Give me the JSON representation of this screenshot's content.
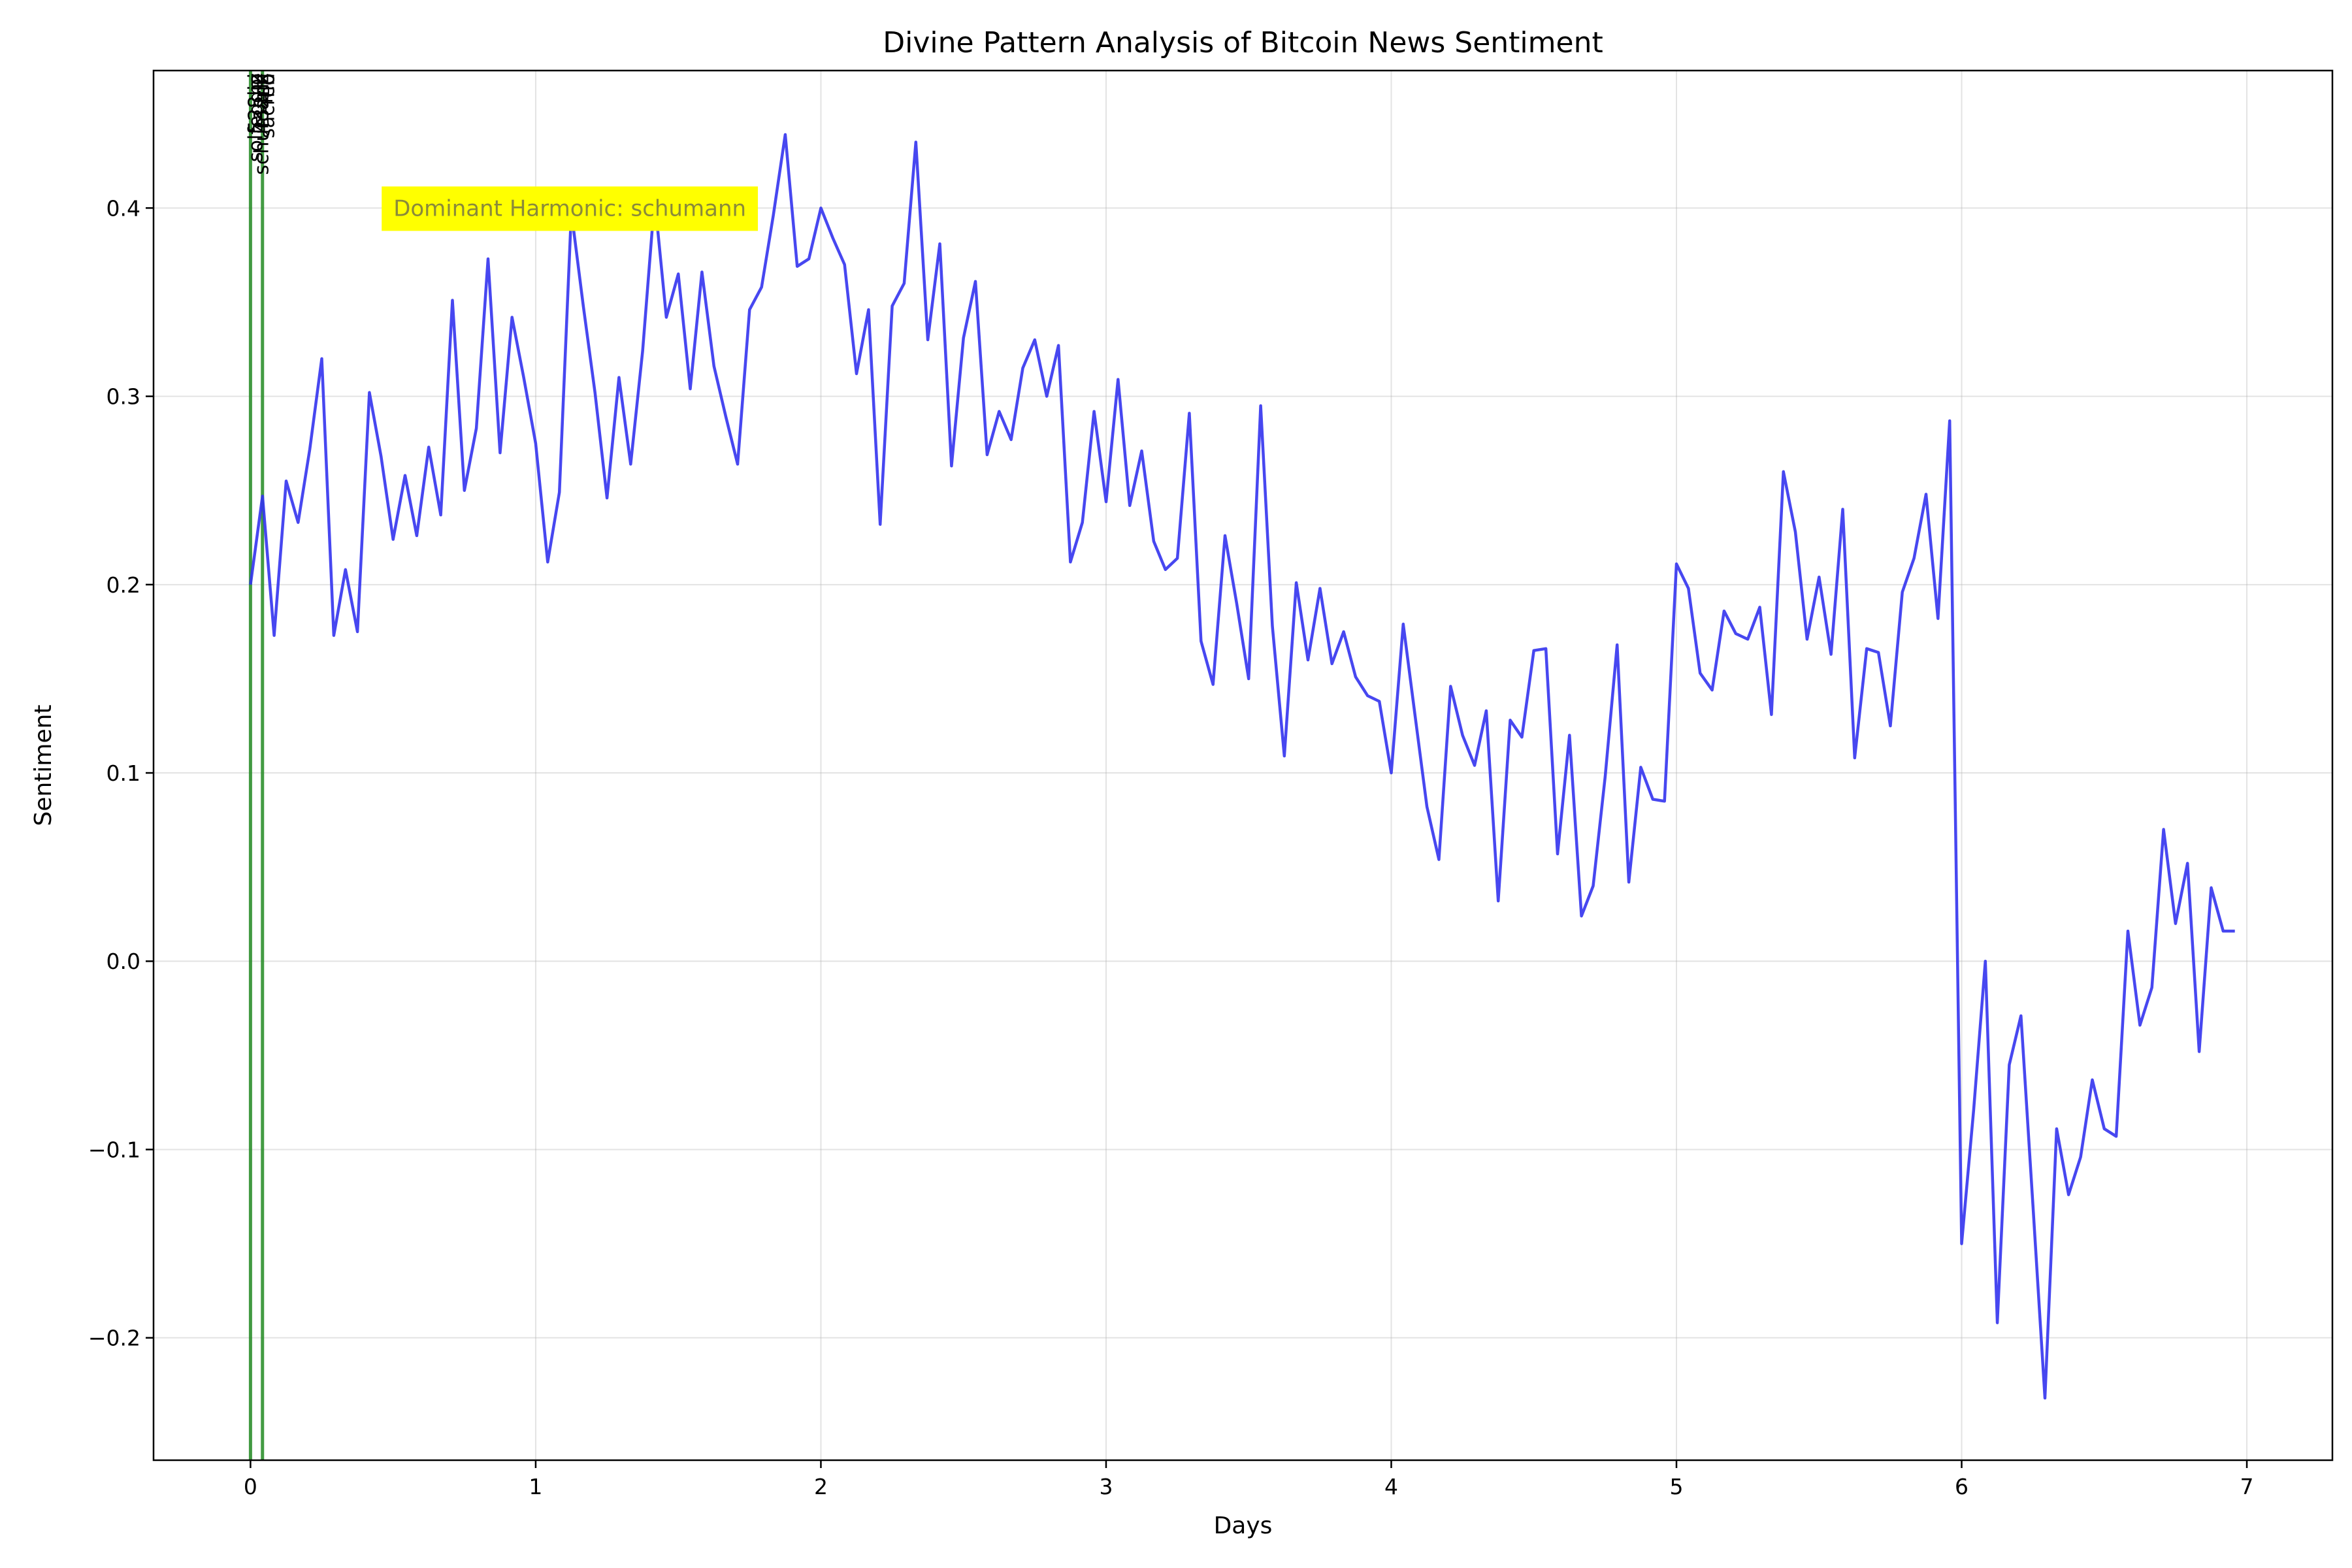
{
  "chart_data": {
    "type": "line",
    "title": "Divine Pattern Analysis of Bitcoin News Sentiment",
    "xlabel": "Days",
    "ylabel": "Sentiment",
    "xlim": [
      -0.34,
      7.3
    ],
    "ylim": [
      -0.265,
      0.473
    ],
    "grid": true,
    "x_ticks": [
      0,
      1,
      2,
      3,
      4,
      5,
      6,
      7
    ],
    "x_tick_labels": [
      "0",
      "1",
      "2",
      "3",
      "4",
      "5",
      "6",
      "7"
    ],
    "y_ticks": [
      -0.2,
      -0.1,
      0.0,
      0.1,
      0.2,
      0.3,
      0.4
    ],
    "y_tick_labels": [
      "−0.2",
      "−0.1",
      "0.0",
      "0.1",
      "0.2",
      "0.3",
      "0.4"
    ],
    "line_color": "#3333ee",
    "vline_color": "#228b22",
    "annotation_bg": "#ffff00",
    "vlines": [
      {
        "x": 0.0,
        "label": "solfeggio"
      },
      {
        "x": 0.042,
        "label": "schumann"
      }
    ],
    "vline_label_text": "solfeggio schumann sacred pi phi fib 528hz 432hz",
    "annotation": "Dominant Harmonic: schumann",
    "annotation_pos": [
      0.46,
      0.4
    ],
    "series": [
      {
        "x": [
          0.0,
          0.042,
          0.083,
          0.125,
          0.167,
          0.208,
          0.25,
          0.292,
          0.333,
          0.375,
          0.417,
          0.458,
          0.5,
          0.542,
          0.583,
          0.625,
          0.667,
          0.708,
          0.75,
          0.792,
          0.833,
          0.875,
          0.917,
          0.958,
          1.0,
          1.042,
          1.083,
          1.125,
          1.167,
          1.208,
          1.25,
          1.292,
          1.333,
          1.375,
          1.417,
          1.458,
          1.5,
          1.542,
          1.583,
          1.625,
          1.667,
          1.708,
          1.75,
          1.792,
          1.833,
          1.875,
          1.917,
          1.958,
          2.0,
          2.042,
          2.083,
          2.125,
          2.167,
          2.208,
          2.25,
          2.292,
          2.333,
          2.375,
          2.417,
          2.458,
          2.5,
          2.542,
          2.583,
          2.625,
          2.667,
          2.708,
          2.75,
          2.792,
          2.833,
          2.875,
          2.917,
          2.958,
          3.0,
          3.042,
          3.083,
          3.125,
          3.167,
          3.208,
          3.25,
          3.292,
          3.333,
          3.375,
          3.417,
          3.458,
          3.5,
          3.542,
          3.583,
          3.625,
          3.667,
          3.708,
          3.75,
          3.792,
          3.833,
          3.875,
          3.917,
          3.958,
          4.0,
          4.042,
          4.083,
          4.125,
          4.167,
          4.208,
          4.25,
          4.292,
          4.333,
          4.375,
          4.417,
          4.458,
          4.5,
          4.542,
          4.583,
          4.625,
          4.667,
          4.708,
          4.75,
          4.792,
          4.833,
          4.875,
          4.917,
          4.958,
          5.0,
          5.042,
          5.083,
          5.125,
          5.167,
          5.208,
          5.25,
          5.292,
          5.333,
          5.375,
          5.417,
          5.458,
          5.5,
          5.542,
          5.583,
          5.625,
          5.667,
          5.708,
          5.75,
          5.792,
          5.833,
          5.875,
          5.917,
          5.958,
          6.0,
          6.042,
          6.083,
          6.125,
          6.167,
          6.208,
          6.25,
          6.292,
          6.333,
          6.375,
          6.417,
          6.458,
          6.5,
          6.542,
          6.583,
          6.625,
          6.667,
          6.708,
          6.75,
          6.792,
          6.833,
          6.875,
          6.917,
          6.958
        ],
        "values": [
          0.2,
          0.247,
          0.173,
          0.255,
          0.233,
          0.272,
          0.32,
          0.173,
          0.208,
          0.175,
          0.302,
          0.268,
          0.224,
          0.258,
          0.226,
          0.273,
          0.237,
          0.351,
          0.25,
          0.283,
          0.373,
          0.27,
          0.342,
          0.31,
          0.275,
          0.212,
          0.249,
          0.398,
          0.348,
          0.302,
          0.246,
          0.31,
          0.264,
          0.324,
          0.405,
          0.342,
          0.365,
          0.304,
          0.366,
          0.316,
          0.289,
          0.264,
          0.346,
          0.358,
          0.396,
          0.439,
          0.369,
          0.373,
          0.4,
          0.384,
          0.37,
          0.312,
          0.346,
          0.232,
          0.348,
          0.36,
          0.435,
          0.33,
          0.381,
          0.263,
          0.331,
          0.361,
          0.269,
          0.292,
          0.277,
          0.315,
          0.33,
          0.3,
          0.327,
          0.212,
          0.233,
          0.292,
          0.244,
          0.309,
          0.242,
          0.271,
          0.223,
          0.208,
          0.214,
          0.291,
          0.17,
          0.147,
          0.226,
          0.19,
          0.15,
          0.295,
          0.178,
          0.109,
          0.201,
          0.16,
          0.198,
          0.158,
          0.175,
          0.151,
          0.141,
          0.138,
          0.1,
          0.179,
          0.131,
          0.082,
          0.054,
          0.146,
          0.12,
          0.104,
          0.133,
          0.032,
          0.128,
          0.119,
          0.165,
          0.166,
          0.057,
          0.12,
          0.024,
          0.04,
          0.098,
          0.168,
          0.042,
          0.103,
          0.086,
          0.085,
          0.211,
          0.198,
          0.153,
          0.144,
          0.186,
          0.174,
          0.171,
          0.188,
          0.131,
          0.26,
          0.228,
          0.171,
          0.204,
          0.163,
          0.24,
          0.108,
          0.166,
          0.164,
          0.125,
          0.196,
          0.214,
          0.248,
          0.182,
          0.287,
          -0.15,
          -0.079,
          0.0,
          -0.192,
          -0.055,
          -0.029,
          -0.13,
          -0.232,
          -0.089,
          -0.124,
          -0.104,
          -0.063,
          -0.089,
          -0.093,
          0.016,
          -0.034,
          -0.014,
          0.07,
          0.02,
          0.052,
          -0.048,
          0.039,
          0.016,
          0.016
        ]
      }
    ]
  }
}
